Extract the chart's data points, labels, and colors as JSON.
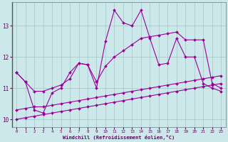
{
  "xlabel": "Windchill (Refroidissement éolien,°C)",
  "background_color": "#cce8ea",
  "grid_color": "#aacccc",
  "line_color": "#990099",
  "x_values": [
    0,
    1,
    2,
    3,
    4,
    5,
    6,
    7,
    8,
    9,
    10,
    11,
    12,
    13,
    14,
    15,
    16,
    17,
    18,
    19,
    20,
    21,
    22,
    23
  ],
  "main_line": [
    11.5,
    11.2,
    10.3,
    10.2,
    10.85,
    11.0,
    11.5,
    11.8,
    11.75,
    11.0,
    12.5,
    13.5,
    13.1,
    13.0,
    13.5,
    12.6,
    11.75,
    11.8,
    12.6,
    12.0,
    12.0,
    11.15,
    11.0,
    10.9
  ],
  "line2": [
    11.5,
    11.2,
    10.9,
    10.9,
    11.0,
    11.1,
    11.3,
    11.8,
    11.75,
    11.2,
    11.7,
    12.0,
    12.2,
    12.4,
    12.6,
    12.65,
    12.7,
    12.75,
    12.8,
    12.55,
    12.55,
    12.55,
    11.15,
    11.0
  ],
  "line3": [
    10.3,
    10.35,
    10.4,
    10.4,
    10.45,
    10.5,
    10.55,
    10.6,
    10.65,
    10.7,
    10.75,
    10.8,
    10.85,
    10.9,
    10.95,
    11.0,
    11.05,
    11.1,
    11.15,
    11.2,
    11.25,
    11.3,
    11.35,
    11.4
  ],
  "line4": [
    10.0,
    10.05,
    10.1,
    10.15,
    10.2,
    10.25,
    10.3,
    10.35,
    10.4,
    10.45,
    10.5,
    10.55,
    10.6,
    10.65,
    10.7,
    10.75,
    10.8,
    10.85,
    10.9,
    10.95,
    11.0,
    11.05,
    11.1,
    11.15
  ],
  "ylim": [
    9.75,
    13.75
  ],
  "yticks": [
    10,
    11,
    12,
    13
  ],
  "xticks": [
    0,
    1,
    2,
    3,
    4,
    5,
    6,
    7,
    8,
    9,
    10,
    11,
    12,
    13,
    14,
    15,
    16,
    17,
    18,
    19,
    20,
    21,
    22,
    23
  ]
}
